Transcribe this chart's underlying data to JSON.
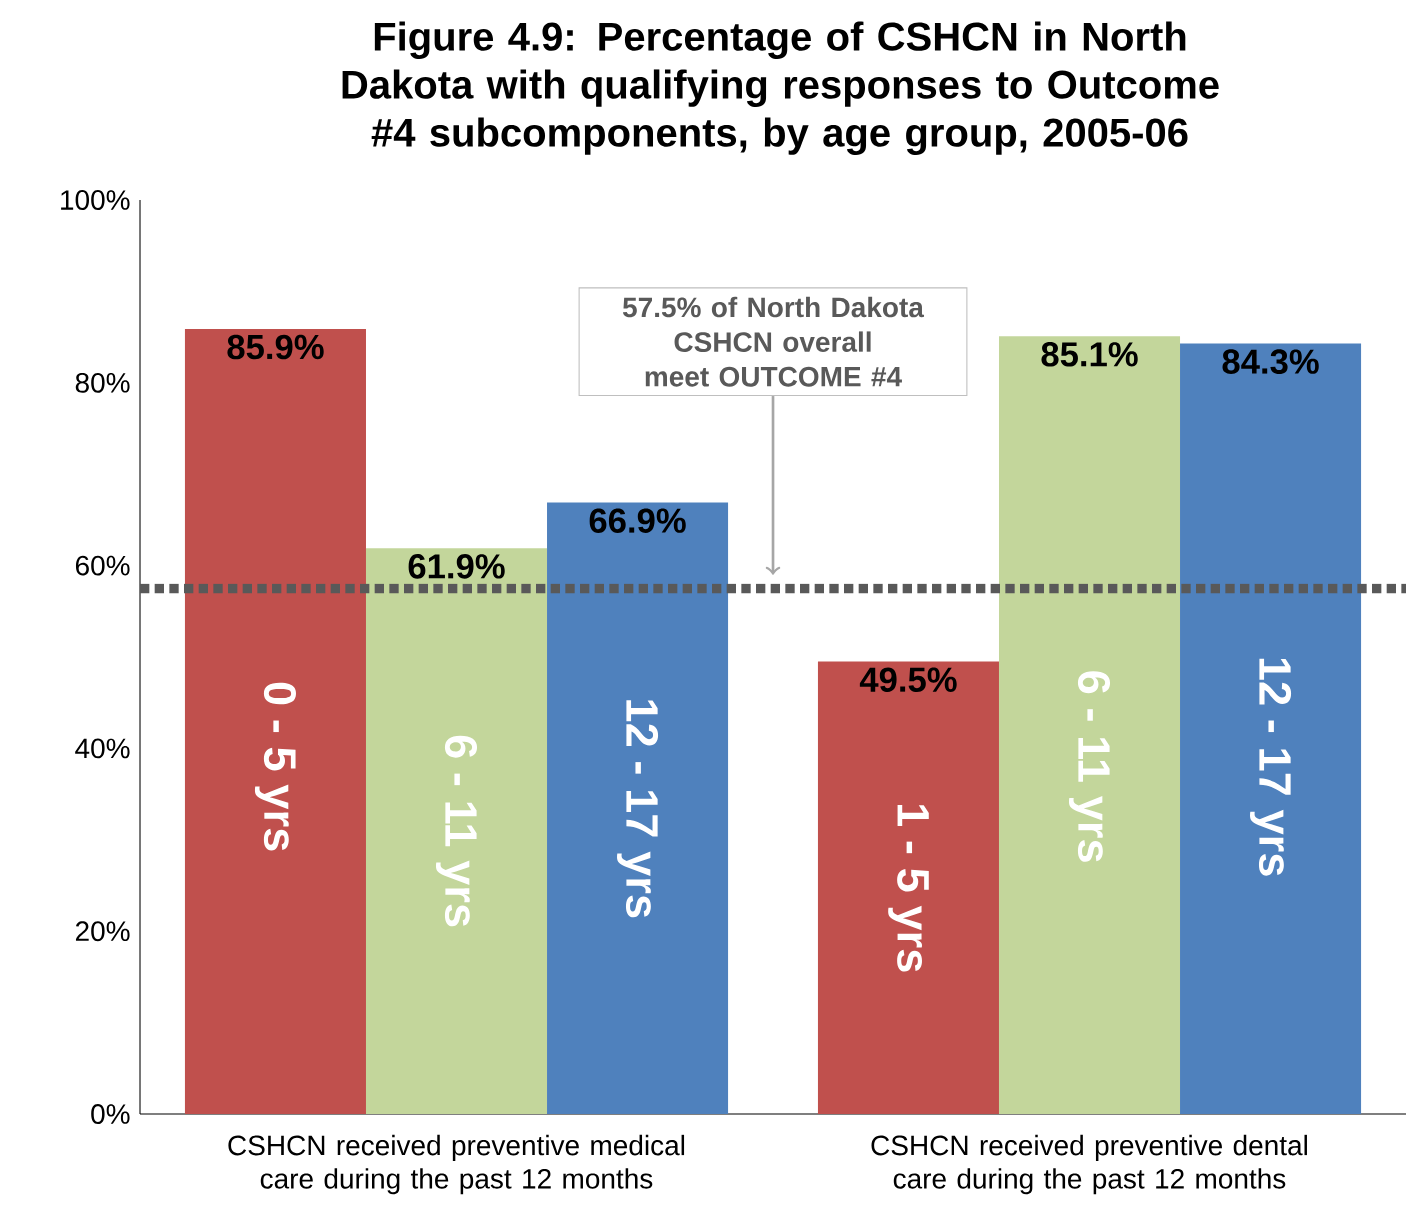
{
  "chart_data": {
    "type": "bar",
    "title": "Figure 4.9: Percentage of CSHCN in North Dakota with qualifying responses to Outcome #4 subcomponents, by age group, 2005-06",
    "categories": [
      "CSHCN received preventive medical care during the past 12 months",
      "CSHCN received preventive dental care during the past 12 months"
    ],
    "series": [
      {
        "color": "#c0504d",
        "values": [
          85.9,
          49.5
        ],
        "value_labels": [
          "85.9%",
          "49.5%"
        ]
      },
      {
        "color": "#c3d69b",
        "values": [
          61.9,
          85.1
        ],
        "value_labels": [
          "61.9%",
          "85.1%"
        ]
      },
      {
        "color": "#4f81bd",
        "values": [
          66.9,
          84.3
        ],
        "value_labels": [
          "66.9%",
          "84.3%"
        ]
      }
    ],
    "annotations": [
      "0 - 5 yrs",
      "6 - 11 yrs",
      "12 - 17 yrs",
      "1 - 5 yrs",
      "6 - 11 yrs",
      "12 - 17 yrs"
    ],
    "ref_lines": [
      {
        "axis": "y",
        "value": 57.5,
        "label": "57.5% of North Dakota CSHCN overall meet OUTCOME #4",
        "color": "#595959",
        "line_style": "dotted"
      }
    ],
    "ylim": [
      0,
      100
    ],
    "yticks": [
      {
        "value": 0,
        "label": "0%"
      },
      {
        "value": 20,
        "label": "20%"
      },
      {
        "value": 40,
        "label": "40%"
      },
      {
        "value": 60,
        "label": "60%"
      },
      {
        "value": 80,
        "label": "80%"
      },
      {
        "value": 100,
        "label": "100%"
      }
    ],
    "grid": false
  }
}
